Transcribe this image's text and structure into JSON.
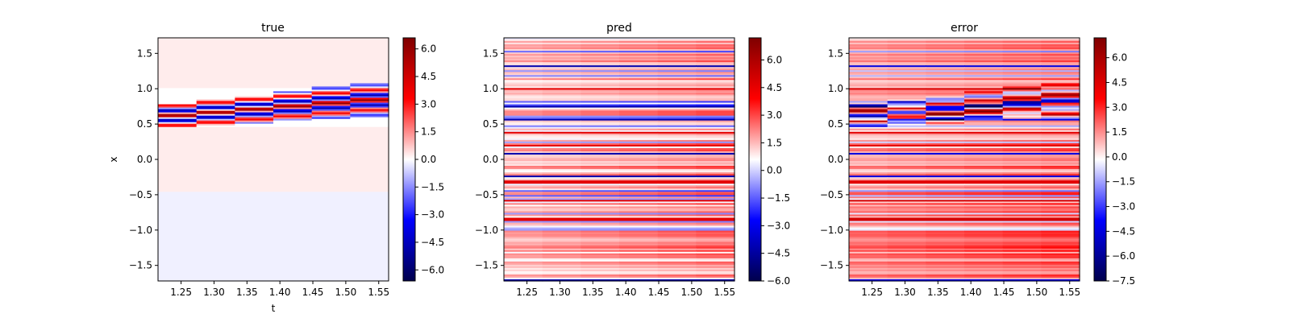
{
  "colors": {
    "colormap": "seismic",
    "stops": [
      "#00004c",
      "#0000ff",
      "#ffffff",
      "#ff0000",
      "#7f0000"
    ]
  },
  "chart_data": [
    {
      "type": "heatmap",
      "title": "true",
      "xlabel": "t",
      "ylabel": "x",
      "xlim": [
        1.215,
        1.565
      ],
      "ylim": [
        -1.72,
        1.72
      ],
      "xticks": [
        "1.25",
        "1.30",
        "1.35",
        "1.40",
        "1.45",
        "1.50",
        "1.55"
      ],
      "yticks": [
        "−1.5",
        "−1.0",
        "−0.5",
        "0.0",
        "0.5",
        "1.0",
        "1.5"
      ],
      "colorbar": {
        "ticks": [
          "−6.0",
          "−4.5",
          "−3.0",
          "−1.5",
          "0.0",
          "1.5",
          "3.0",
          "4.5",
          "6.0"
        ],
        "vmin": -6.6,
        "vmax": 6.6
      },
      "pattern": "sharp band of strong positive and negative stripes centered near x≈0.6 at t=1.22 drifting to x≈0.85 at t=1.56; values near 0 elsewhere, slightly negative for x<−0.5"
    },
    {
      "type": "heatmap",
      "title": "pred",
      "xlabel": "",
      "ylabel": "",
      "xlim": [
        1.215,
        1.565
      ],
      "ylim": [
        -1.72,
        1.72
      ],
      "xticks": [
        "1.25",
        "1.30",
        "1.35",
        "1.40",
        "1.45",
        "1.50",
        "1.55"
      ],
      "yticks": [
        "−1.5",
        "−1.0",
        "−0.5",
        "0.0",
        "0.5",
        "1.0",
        "1.5"
      ],
      "colorbar": {
        "ticks": [
          "−6.0",
          "−4.5",
          "−3.0",
          "−1.5",
          "0.0",
          "1.5",
          "3.0",
          "4.5",
          "6.0"
        ],
        "vmin": -6.0,
        "vmax": 7.2
      },
      "pattern": "horizontal stripes mostly red (0 to 4), a few blue stripes near x≈0.08, 0.57, 0.75, 1.3, −0.25"
    },
    {
      "type": "heatmap",
      "title": "error",
      "xlabel": "",
      "ylabel": "",
      "xlim": [
        1.215,
        1.565
      ],
      "ylim": [
        -1.72,
        1.72
      ],
      "xticks": [
        "1.25",
        "1.30",
        "1.35",
        "1.40",
        "1.45",
        "1.50",
        "1.55"
      ],
      "yticks": [
        "−1.5",
        "−1.0",
        "−0.5",
        "0.0",
        "0.5",
        "1.0",
        "1.5"
      ],
      "colorbar": {
        "ticks": [
          "−7.5",
          "−6.0",
          "−4.5",
          "−3.0",
          "−1.5",
          "0.0",
          "1.5",
          "3.0",
          "4.5",
          "6.0"
        ],
        "vmin": -7.5,
        "vmax": 7.2
      },
      "pattern": "similar to pred with a dark red band near x≈0.6–0.85 where true has its band"
    }
  ]
}
